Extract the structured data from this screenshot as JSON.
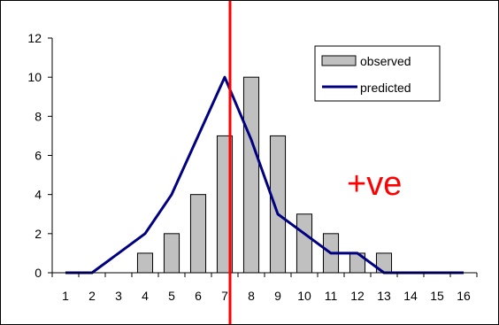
{
  "chart_data": {
    "type": "bar",
    "categories": [
      "1",
      "2",
      "3",
      "4",
      "5",
      "6",
      "7",
      "8",
      "9",
      "10",
      "11",
      "12",
      "13",
      "14",
      "15",
      "16"
    ],
    "ylim": [
      0,
      12
    ],
    "yticks": [
      "0",
      "2",
      "4",
      "6",
      "8",
      "10",
      "12"
    ],
    "series": [
      {
        "name": "observed",
        "type": "bar",
        "values": [
          0,
          0,
          0,
          1,
          2,
          4,
          7,
          10,
          7,
          3,
          2,
          1,
          1,
          0,
          0,
          0
        ],
        "color": "#c0c0c0"
      },
      {
        "name": "predicted",
        "type": "line",
        "values": [
          0,
          0,
          1,
          2,
          4,
          7,
          10,
          6.8,
          3,
          2,
          1,
          1,
          0,
          0,
          0,
          0
        ],
        "color": "#000080"
      }
    ],
    "legend_position": "top-right",
    "grid": false,
    "reference_line": {
      "x": 7.2,
      "color": "#ff0000"
    },
    "annotation": {
      "text": "+ve",
      "color": "#ff0000"
    }
  }
}
